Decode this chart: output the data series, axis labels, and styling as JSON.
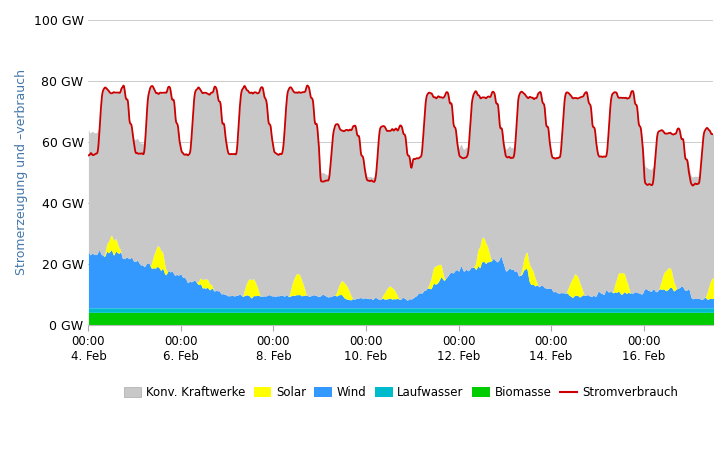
{
  "ylabel": "Stromerzeugung und –verbrauch",
  "ylim": [
    0,
    100
  ],
  "ytick_labels": [
    "0 GW",
    "20 GW",
    "40 GW",
    "60 GW",
    "80 GW",
    "100 GW"
  ],
  "xtick_labels": [
    "00:00\n4. Feb",
    "00:00\n6. Feb",
    "00:00\n8. Feb",
    "00:00\n10. Feb",
    "00:00\n12. Feb",
    "00:00\n14. Feb",
    "00:00\n16. Feb"
  ],
  "color_konv": "#c8c8c8",
  "color_solar": "#ffff00",
  "color_wind": "#3399ff",
  "color_laufwasser": "#00bbcc",
  "color_biomasse": "#00cc00",
  "color_verbrauch": "#cc0000",
  "bg_color": "#ffffff",
  "grid_color": "#cccccc",
  "ylabel_color": "#4477aa",
  "legend_labels": [
    "Konv. Kraftwerke",
    "Solar",
    "Wind",
    "Laufwasser",
    "Biomasse",
    "Stromverbrauch"
  ]
}
